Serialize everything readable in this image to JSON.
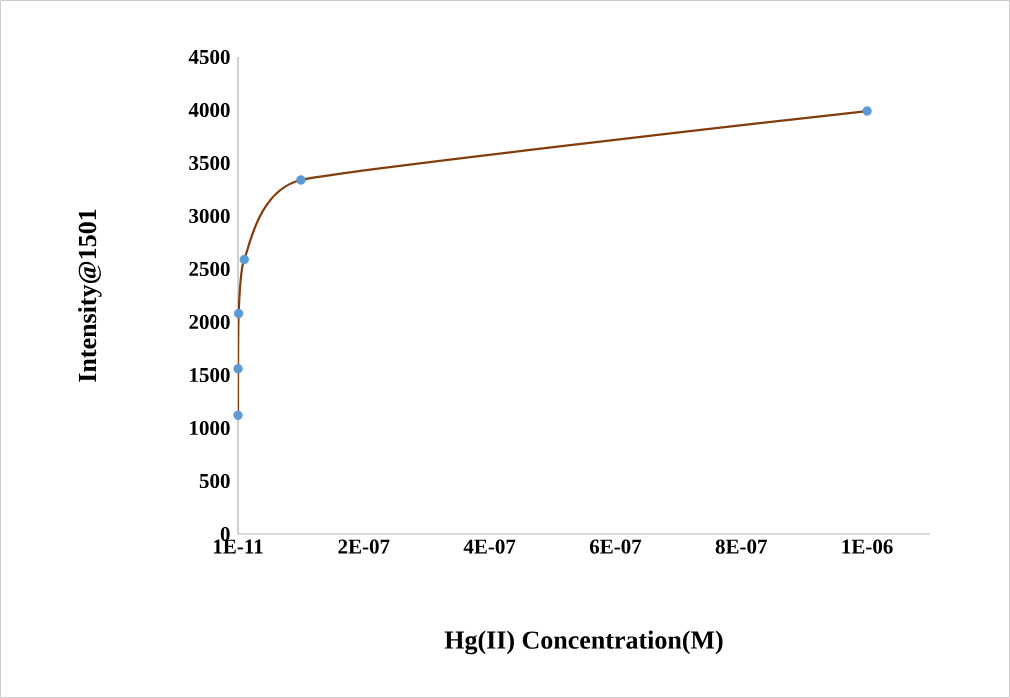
{
  "chart_data": {
    "type": "line",
    "xlabel": "Hg(II) Concentration(M)",
    "ylabel": "Intensity@1501",
    "x": [
      1e-11,
      1e-10,
      1e-09,
      1e-08,
      1e-07,
      1e-06
    ],
    "series": [
      {
        "color": "#843c0c",
        "colors": [
          "#5b9bd5",
          "#5b9bd5",
          "#5b9bd5",
          "#5b9bd5",
          "#5b9bd5",
          "#5b9bd5"
        ],
        "values": [
          1120,
          1560,
          2080,
          2590,
          3340,
          3990
        ]
      }
    ],
    "marker": "circle",
    "line_style": "solid",
    "xlim": [
      1e-11,
      1.1e-06
    ],
    "xticks": [
      {
        "value": 1e-11,
        "label": "1E-11"
      },
      {
        "value": 2e-07,
        "label": "2E-07"
      },
      {
        "value": 4e-07,
        "label": "4E-07"
      },
      {
        "value": 6e-07,
        "label": "6E-07"
      },
      {
        "value": 8e-07,
        "label": "8E-07"
      },
      {
        "value": 1e-06,
        "label": "1E-06"
      }
    ],
    "ylim": [
      0,
      4500
    ],
    "yticks": [
      0,
      500,
      1000,
      1500,
      2000,
      2500,
      3000,
      3500,
      4000,
      4500
    ]
  }
}
